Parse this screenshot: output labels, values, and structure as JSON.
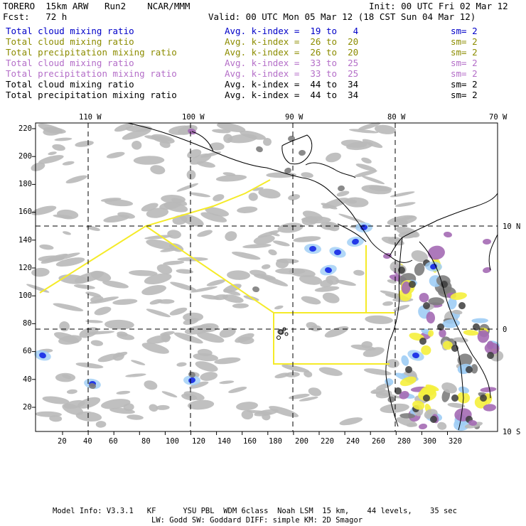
{
  "header": {
    "model": "TORERO  15km ARW   Run2    NCAR/MMM",
    "init": "Init: 00 UTC Fri 02 Mar 12",
    "fcst": "Fcst:   72 h",
    "valid": "Valid: 00 UTC Mon 05 Mar 12 (18 CST Sun 04 Mar 12)"
  },
  "legend": [
    {
      "label": "Total cloud mixing ratio",
      "avg": "Avg. k-index =  19 to   4",
      "sm": "sm= 2",
      "color": "#0000c8"
    },
    {
      "label": "Total cloud mixing ratio",
      "avg": "Avg. k-index =  26 to  20",
      "sm": "sm= 2",
      "color": "#8c8c00"
    },
    {
      "label": "Total precipitation mixing ratio",
      "avg": "Avg. k-index =  26 to  20",
      "sm": "sm= 2",
      "color": "#8c8c00"
    },
    {
      "label": "Total cloud mixing ratio",
      "avg": "Avg. k-index =  33 to  25",
      "sm": "sm= 2",
      "color": "#b46ec8"
    },
    {
      "label": "Total precipitation mixing ratio",
      "avg": "Avg. k-index =  33 to  25",
      "sm": "sm= 2",
      "color": "#b46ec8"
    },
    {
      "label": "Total cloud mixing ratio",
      "avg": "Avg. k-index =  44 to  34",
      "sm": "sm= 2",
      "color": "#000000"
    },
    {
      "label": "Total precipitation mixing ratio",
      "avg": "Avg. k-index =  44 to  34",
      "sm": "sm= 2",
      "color": "#000000"
    }
  ],
  "axes": {
    "lon_labels": [
      "110 W",
      "100 W",
      "90 W",
      "80 W",
      "70 W"
    ],
    "lat_labels": [
      "10 N",
      "0",
      "10 S"
    ],
    "x_ticks": [
      "20",
      "40",
      "60",
      "80",
      "100",
      "120",
      "140",
      "160",
      "180",
      "200",
      "220",
      "240",
      "260",
      "280",
      "300",
      "320"
    ],
    "y_ticks": [
      "220",
      "200",
      "180",
      "160",
      "140",
      "120",
      "100",
      "80",
      "60",
      "40",
      "20"
    ]
  },
  "colors": {
    "cloud_gray": "#b9b9b9",
    "dark_core": "#3c3c3c",
    "mid_gray": "#7d7d7d",
    "deep_blue": "#1428e6",
    "light_blue": "#9ecdf5",
    "yellow": "#f5f03c",
    "purple": "#a46ab4",
    "domain_line": "#f5eb28",
    "coast": "#000000"
  },
  "footer": {
    "line1": "Model Info: V3.3.1   KF      YSU PBL  WDM 6class  Noah LSM  15 km,    44 levels,    35 sec",
    "line2": "LW: Godd SW: Goddard DIFF: simple KM: 2D Smagor"
  }
}
